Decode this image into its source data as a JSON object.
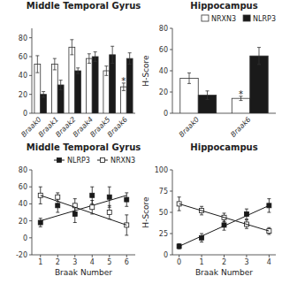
{
  "chart_data": [
    {
      "type": "bar",
      "title": "Middle Temporal Gyrus",
      "categories": [
        "Braak0",
        "Braak1",
        "Braak2",
        "Braak4",
        "Braak5",
        "Braak6"
      ],
      "series": [
        {
          "color": "#ffffff",
          "values": [
            52,
            52,
            70,
            58,
            45,
            28
          ],
          "errors": [
            9,
            6,
            8,
            5,
            5,
            4
          ]
        },
        {
          "color": "#1a1a1a",
          "values": [
            20,
            30,
            45,
            60,
            62,
            58
          ],
          "errors": [
            3,
            5,
            3,
            5,
            9,
            6
          ]
        }
      ],
      "ylim": [
        0,
        90
      ],
      "yticks": [
        0,
        20,
        40,
        60,
        80
      ],
      "annotations": [
        {
          "text": "*",
          "x": "Braak6",
          "series": 0
        }
      ]
    },
    {
      "type": "bar",
      "title": "Hippocampus",
      "y_label": "H-Score",
      "categories": [
        "Braak0",
        "Braak6"
      ],
      "series": [
        {
          "name": "NRXN3",
          "color": "#ffffff",
          "values": [
            33,
            14
          ],
          "errors": [
            5,
            2
          ]
        },
        {
          "name": "NLRP3",
          "color": "#1a1a1a",
          "values": [
            17,
            54
          ],
          "errors": [
            4,
            8
          ]
        }
      ],
      "ylim": [
        0,
        80
      ],
      "yticks": [
        0,
        20,
        40,
        60,
        80
      ],
      "legend": "upper right",
      "annotations": [
        {
          "text": "*",
          "x": "Braak6",
          "series": 0
        }
      ]
    },
    {
      "type": "scatter",
      "title": "Middle Temporal Gyrus",
      "x_label": "Braak Number",
      "series": [
        {
          "name": "NLRP3",
          "color": "#1a1a1a",
          "marker": "square",
          "x": [
            1,
            2,
            3,
            4,
            5,
            6
          ],
          "values": [
            18,
            38,
            28,
            50,
            48,
            45
          ],
          "errors": [
            5,
            8,
            10,
            10,
            12,
            8
          ]
        },
        {
          "type": "line",
          "color": "#1a1a1a",
          "line_style": "solid",
          "x": [
            1,
            6
          ],
          "values": [
            20,
            50
          ]
        },
        {
          "name": "NRXN3",
          "color": "#1a1a1a",
          "marker": "square-open",
          "x": [
            1,
            2,
            3,
            4,
            5,
            6
          ],
          "values": [
            50,
            48,
            38,
            36,
            30,
            15
          ],
          "errors": [
            10,
            5,
            8,
            8,
            8,
            12
          ]
        },
        {
          "type": "line",
          "color": "#1a1a1a",
          "line_style": "solid",
          "x": [
            1,
            6
          ],
          "values": [
            50,
            15
          ]
        }
      ],
      "xlim": [
        0.5,
        6.5
      ],
      "xticks": [
        1,
        2,
        3,
        4,
        5,
        6
      ],
      "ylim": [
        -20,
        80
      ],
      "yticks": [
        -20,
        0,
        20,
        40,
        60,
        80
      ],
      "legend": "upper right"
    },
    {
      "type": "scatter",
      "title": "Hippocampus",
      "x_label": "Braak Number",
      "y_label": "H-Score",
      "series": [
        {
          "color": "#1a1a1a",
          "marker": "square",
          "x": [
            0,
            1,
            2,
            3,
            4
          ],
          "values": [
            10,
            20,
            35,
            48,
            58
          ],
          "errors": [
            3,
            5,
            6,
            6,
            8
          ]
        },
        {
          "type": "line",
          "color": "#1a1a1a",
          "line_style": "solid",
          "x": [
            0,
            4
          ],
          "values": [
            10,
            58
          ]
        },
        {
          "color": "#1a1a1a",
          "marker": "square-open",
          "x": [
            0,
            1,
            2,
            3,
            4
          ],
          "values": [
            60,
            52,
            44,
            36,
            28
          ],
          "errors": [
            8,
            5,
            5,
            5,
            4
          ]
        },
        {
          "type": "line",
          "color": "#1a1a1a",
          "line_style": "solid",
          "x": [
            0,
            4
          ],
          "values": [
            60,
            28
          ]
        }
      ],
      "xlim": [
        -0.3,
        4.3
      ],
      "xticks": [
        0,
        1,
        2,
        3,
        4
      ],
      "ylim": [
        0,
        100
      ],
      "yticks": [
        0,
        25,
        50,
        75,
        100
      ]
    }
  ]
}
